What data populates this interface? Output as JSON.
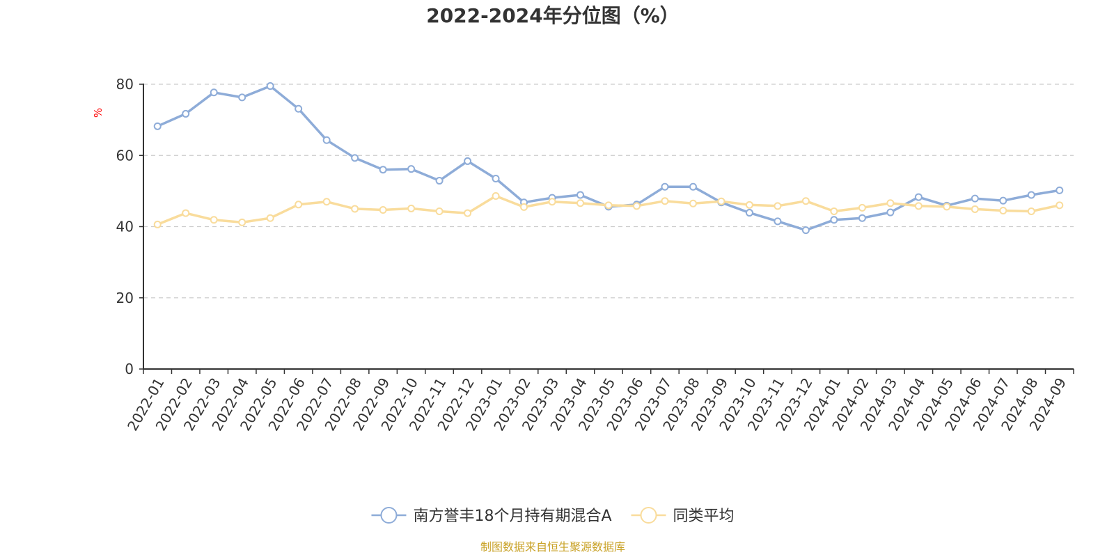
{
  "chart_data": {
    "type": "line",
    "title": "2022-2024年分位图（%）",
    "ylabel": "%",
    "xlabel": "",
    "ylim": [
      0,
      80
    ],
    "yticks": [
      0,
      20,
      40,
      60,
      80
    ],
    "grid": true,
    "legend_position": "bottom-center",
    "categories": [
      "2022-01",
      "2022-02",
      "2022-03",
      "2022-04",
      "2022-05",
      "2022-06",
      "2022-07",
      "2022-08",
      "2022-09",
      "2022-10",
      "2022-11",
      "2022-12",
      "2023-01",
      "2023-02",
      "2023-03",
      "2023-04",
      "2023-05",
      "2023-06",
      "2023-07",
      "2023-08",
      "2023-09",
      "2023-10",
      "2023-11",
      "2023-12",
      "2024-01",
      "2024-02",
      "2024-03",
      "2024-04",
      "2024-05",
      "2024-06",
      "2024-07",
      "2024-08",
      "2024-09"
    ],
    "series": [
      {
        "name": "南方誉丰18个月持有期混合A",
        "color": "#8eacd8",
        "values": [
          68.2,
          71.7,
          77.7,
          76.3,
          79.5,
          73.1,
          64.3,
          59.3,
          56.0,
          56.2,
          52.9,
          58.4,
          53.5,
          46.8,
          48.1,
          48.9,
          45.6,
          46.2,
          51.2,
          51.2,
          46.8,
          43.9,
          41.5,
          39.0,
          41.9,
          42.4,
          44.0,
          48.3,
          45.9,
          47.9,
          47.3,
          48.9,
          50.2
        ]
      },
      {
        "name": "同类平均",
        "color": "#f9dc9c",
        "values": [
          40.6,
          43.8,
          41.9,
          41.2,
          42.4,
          46.2,
          47.0,
          45.0,
          44.7,
          45.1,
          44.3,
          43.8,
          48.6,
          45.5,
          47.0,
          46.6,
          46.0,
          45.8,
          47.2,
          46.5,
          47.1,
          46.1,
          45.8,
          47.2,
          44.3,
          45.3,
          46.6,
          45.8,
          45.6,
          44.9,
          44.5,
          44.3,
          46.0
        ]
      }
    ]
  },
  "footer": {
    "source": "制图数据来自恒生聚源数据库"
  }
}
